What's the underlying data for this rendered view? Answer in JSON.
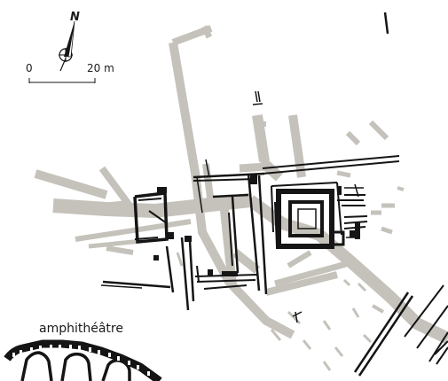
{
  "map": {
    "north_label": "N",
    "scale": {
      "start_label": "0",
      "end_label": "20 m"
    },
    "labels": {
      "amphitheatre": "amphithéâtre"
    }
  }
}
